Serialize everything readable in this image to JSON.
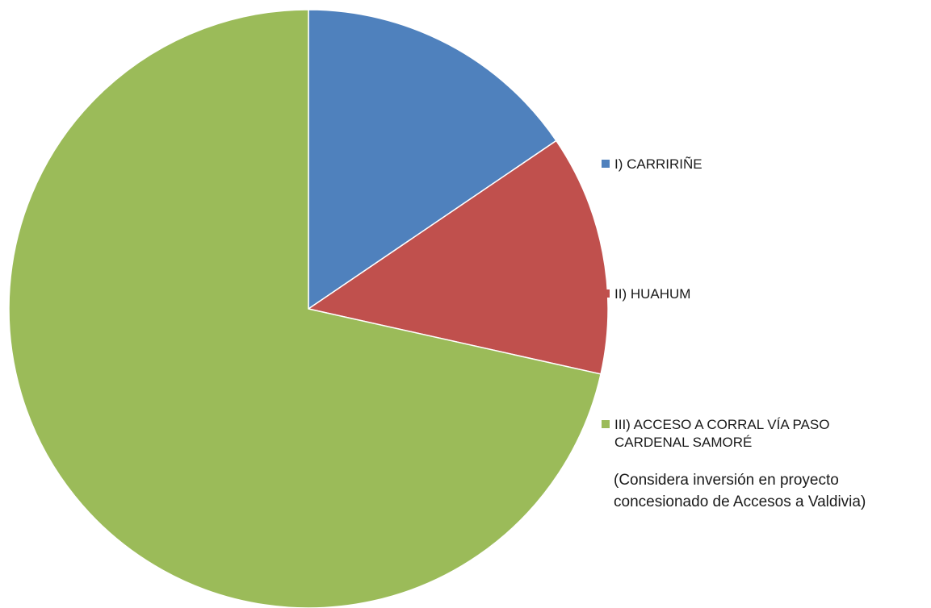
{
  "chart_data": {
    "type": "pie",
    "slices": [
      {
        "label": "I) CARRIRIÑE",
        "value": 15.5,
        "color": "#4f81bd"
      },
      {
        "label": "II) HUAHUM",
        "value": 13.0,
        "color": "#c0504d"
      },
      {
        "label": "III) ACCESO A CORRAL VÍA PASO\nCARDENAL SAMORÉ",
        "value": 71.5,
        "color": "#9bbb59"
      }
    ],
    "legend_position": "right",
    "annotation": "(Considera inversión en proyecto\nconcesionado de Accesos a Valdivia)"
  }
}
